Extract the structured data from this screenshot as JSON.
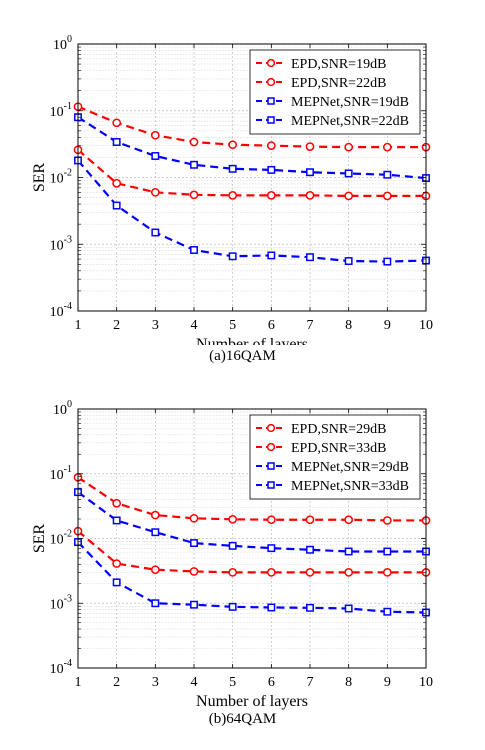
{
  "captions": [
    "(a)16QAM",
    "(b)64QAM"
  ],
  "chart_data": [
    {
      "type": "line",
      "title": "",
      "xlabel": "Number of layers",
      "ylabel": "SER",
      "yscale": "log",
      "xlim": [
        1,
        10
      ],
      "ylim": [
        0.0001,
        1
      ],
      "x": [
        1,
        2,
        3,
        4,
        5,
        6,
        7,
        8,
        9,
        10
      ],
      "xticks": [
        "1",
        "2",
        "3",
        "4",
        "5",
        "6",
        "7",
        "8",
        "9",
        "10"
      ],
      "yticks": [
        {
          "value": 1,
          "base": "10",
          "exp": "0"
        },
        {
          "value": 0.1,
          "base": "10",
          "exp": "-1"
        },
        {
          "value": 0.01,
          "base": "10",
          "exp": "-2"
        },
        {
          "value": 0.001,
          "base": "10",
          "exp": "-3"
        },
        {
          "value": 0.0001,
          "base": "10",
          "exp": "-4"
        }
      ],
      "grid": true,
      "legend_position": "top-right",
      "series": [
        {
          "name": "EPD,SNR=19dB",
          "color": "#ff0000",
          "marker": "circle",
          "values": [
            0.115,
            0.066,
            0.043,
            0.034,
            0.031,
            0.03,
            0.029,
            0.0285,
            0.0285,
            0.0285
          ]
        },
        {
          "name": "EPD,SNR=22dB",
          "color": "#ff0000",
          "marker": "circle",
          "values": [
            0.026,
            0.0082,
            0.006,
            0.0055,
            0.0054,
            0.0054,
            0.0054,
            0.0053,
            0.0053,
            0.0053
          ]
        },
        {
          "name": "MEPNet,SNR=19dB",
          "color": "#0000ff",
          "marker": "square",
          "values": [
            0.08,
            0.034,
            0.021,
            0.0155,
            0.0135,
            0.013,
            0.012,
            0.0115,
            0.011,
            0.0098
          ]
        },
        {
          "name": "MEPNet,SNR=22dB",
          "color": "#0000ff",
          "marker": "square",
          "values": [
            0.018,
            0.0038,
            0.0015,
            0.00082,
            0.00066,
            0.00068,
            0.00064,
            0.00056,
            0.00055,
            0.00057
          ]
        }
      ]
    },
    {
      "type": "line",
      "title": "",
      "xlabel": "Number of layers",
      "ylabel": "SER",
      "yscale": "log",
      "xlim": [
        1,
        10
      ],
      "ylim": [
        0.0001,
        1
      ],
      "x": [
        1,
        2,
        3,
        4,
        5,
        6,
        7,
        8,
        9,
        10
      ],
      "xticks": [
        "1",
        "2",
        "3",
        "4",
        "5",
        "6",
        "7",
        "8",
        "9",
        "10"
      ],
      "yticks": [
        {
          "value": 1,
          "base": "10",
          "exp": "0"
        },
        {
          "value": 0.1,
          "base": "10",
          "exp": "-1"
        },
        {
          "value": 0.01,
          "base": "10",
          "exp": "-2"
        },
        {
          "value": 0.001,
          "base": "10",
          "exp": "-3"
        },
        {
          "value": 0.0001,
          "base": "10",
          "exp": "-4"
        }
      ],
      "grid": true,
      "legend_position": "top-right",
      "series": [
        {
          "name": "EPD,SNR=29dB",
          "color": "#ff0000",
          "marker": "circle",
          "values": [
            0.088,
            0.035,
            0.023,
            0.0205,
            0.0198,
            0.0195,
            0.0195,
            0.0195,
            0.019,
            0.019
          ]
        },
        {
          "name": "EPD,SNR=33dB",
          "color": "#ff0000",
          "marker": "circle",
          "values": [
            0.013,
            0.0041,
            0.0033,
            0.0031,
            0.003,
            0.003,
            0.003,
            0.003,
            0.003,
            0.003
          ]
        },
        {
          "name": "MEPNet,SNR=29dB",
          "color": "#0000ff",
          "marker": "square",
          "values": [
            0.052,
            0.019,
            0.0125,
            0.0085,
            0.0077,
            0.0071,
            0.0067,
            0.0063,
            0.0063,
            0.0063
          ]
        },
        {
          "name": "MEPNet,SNR=33dB",
          "color": "#0000ff",
          "marker": "square",
          "values": [
            0.0088,
            0.0021,
            0.001,
            0.00095,
            0.00088,
            0.00086,
            0.00085,
            0.00083,
            0.00074,
            0.00072
          ]
        }
      ]
    }
  ]
}
